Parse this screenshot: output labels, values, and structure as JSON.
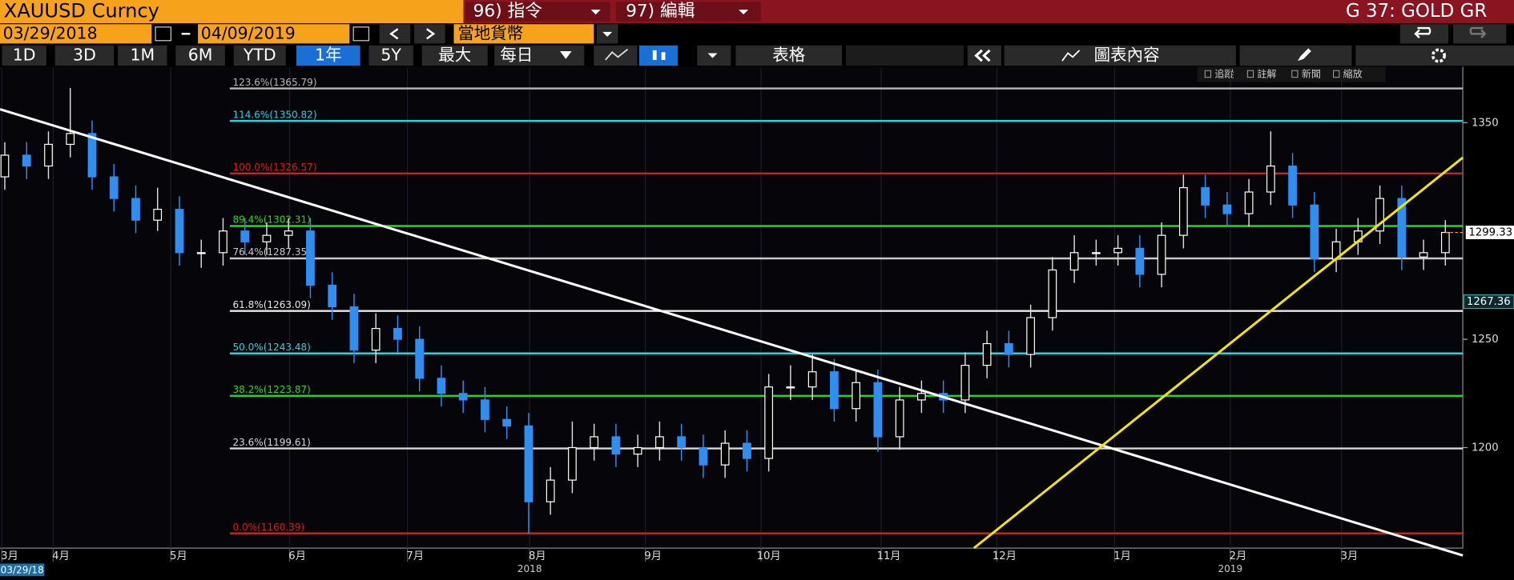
{
  "toolbar": {
    "ticker": "XAUUSD Curncy",
    "menu1": "96) 指令",
    "menu2": "97) 編輯",
    "security": "G 37: GOLD GR",
    "start_date": "03/29/2018",
    "end_date": "04/09/2019",
    "currency": "當地貨幣",
    "periods": [
      "1D",
      "3D",
      "1M",
      "6M",
      "YTD",
      "1年",
      "5Y",
      "最大"
    ],
    "frequency": "每日",
    "table": "表格",
    "chart_content": "圖表內容",
    "tools": [
      "追蹤",
      "註解",
      "新聞",
      "縮放"
    ],
    "axis_start": "03/29/18"
  },
  "chart_data": {
    "type": "candlestick",
    "up_color": "#ffffff",
    "down_color": "#2e8ff0",
    "grid": false,
    "xlim": [
      -0.22,
      66.8
    ],
    "ylim": [
      1153.6,
      1375.4
    ],
    "yticks": [
      1200,
      1250,
      1350
    ],
    "xticks": [
      {
        "value": 0.22,
        "label": "3月"
      },
      {
        "value": 2.57,
        "label": "4月"
      },
      {
        "value": 7.96,
        "label": "5月"
      },
      {
        "value": 13.4,
        "label": "6月"
      },
      {
        "value": 18.8,
        "label": "7月"
      },
      {
        "value": 24.4,
        "label": "8月"
      },
      {
        "value": 29.7,
        "label": "9月"
      },
      {
        "value": 35.0,
        "label": "10月"
      },
      {
        "value": 40.5,
        "label": "11月"
      },
      {
        "value": 45.8,
        "label": "12月"
      },
      {
        "value": 51.2,
        "label": "1月"
      },
      {
        "value": 56.5,
        "label": "2月"
      },
      {
        "value": 61.6,
        "label": "3月"
      }
    ],
    "years": [
      "2018",
      "2019"
    ],
    "open": [
      1325,
      1335,
      1330,
      1340,
      1345,
      1325,
      1315,
      1305,
      1310,
      1290,
      1290,
      1300,
      1295,
      1298,
      1300,
      1275,
      1265,
      1245,
      1255,
      1250,
      1232,
      1225,
      1222,
      1213,
      1210,
      1175,
      1185,
      1200,
      1205,
      1197,
      1200,
      1205,
      1200,
      1192,
      1202,
      1195,
      1228,
      1228,
      1235,
      1218,
      1230,
      1205,
      1222,
      1225,
      1222,
      1238,
      1248,
      1243,
      1260,
      1282,
      1290,
      1290,
      1292,
      1280,
      1298,
      1320,
      1312,
      1308,
      1318,
      1330,
      1312,
      1287,
      1295,
      1300,
      1315,
      1288,
      1290
    ],
    "high": [
      1341,
      1341,
      1346,
      1366,
      1351,
      1331,
      1321,
      1320,
      1316,
      1296,
      1306,
      1306,
      1304,
      1306,
      1306,
      1281,
      1271,
      1262,
      1261,
      1256,
      1238,
      1231,
      1228,
      1219,
      1216,
      1191,
      1212,
      1211,
      1211,
      1206,
      1212,
      1211,
      1206,
      1208,
      1208,
      1234,
      1238,
      1243,
      1241,
      1236,
      1236,
      1228,
      1231,
      1231,
      1244,
      1254,
      1254,
      1266,
      1288,
      1298,
      1296,
      1298,
      1298,
      1304,
      1326,
      1326,
      1318,
      1324,
      1346,
      1336,
      1318,
      1301,
      1306,
      1321,
      1321,
      1296,
      1305
    ],
    "low": [
      1319,
      1324,
      1324,
      1334,
      1319,
      1309,
      1299,
      1300,
      1284,
      1283,
      1284,
      1289,
      1289,
      1292,
      1269,
      1259,
      1239,
      1239,
      1244,
      1226,
      1219,
      1216,
      1207,
      1204,
      1160.39,
      1169,
      1179,
      1194,
      1191,
      1191,
      1194,
      1194,
      1186,
      1186,
      1189,
      1189,
      1222,
      1222,
      1212,
      1212,
      1198,
      1199,
      1216,
      1216,
      1216,
      1232,
      1237,
      1237,
      1254,
      1276,
      1284,
      1284,
      1274,
      1274,
      1292,
      1306,
      1302,
      1302,
      1312,
      1306,
      1281,
      1281,
      1289,
      1294,
      1282,
      1282,
      1284
    ],
    "close": [
      1335,
      1330,
      1340,
      1345,
      1325,
      1315,
      1305,
      1310,
      1290,
      1290,
      1300,
      1295,
      1298,
      1300,
      1275,
      1265,
      1245,
      1255,
      1250,
      1232,
      1225,
      1222,
      1213,
      1210,
      1175,
      1185,
      1200,
      1205,
      1197,
      1200,
      1205,
      1200,
      1192,
      1202,
      1195,
      1228,
      1228,
      1235,
      1218,
      1230,
      1205,
      1222,
      1225,
      1222,
      1238,
      1248,
      1243,
      1260,
      1282,
      1290,
      1290,
      1292,
      1280,
      1298,
      1320,
      1312,
      1308,
      1318,
      1330,
      1312,
      1287,
      1295,
      1300,
      1315,
      1288,
      1290,
      1299.33
    ],
    "marker_value": 1267.36,
    "fib_levels": [
      {
        "value": 1365.79,
        "label": "123.6%(1365.79)",
        "color": "#b8b8b8"
      },
      {
        "value": 1350.82,
        "label": "114.6%(1350.82)",
        "color": "#27d3dc"
      },
      {
        "value": 1326.57,
        "label": "100.0%(1326.57)",
        "color": "#e01818"
      },
      {
        "value": 1302.31,
        "label": "89.4%(1302.31)",
        "color": "#22d822"
      },
      {
        "value": 1287.35,
        "label": "76.4%(1287.35)",
        "color": "#c8c8c8"
      },
      {
        "value": 1263.09,
        "label": "61.8%(1263.09)",
        "color": "#e8e8e8"
      },
      {
        "value": 1243.48,
        "label": "50.0%(1243.48)",
        "color": "#27d3dc"
      },
      {
        "value": 1223.87,
        "label": "38.2%(1223.87)",
        "color": "#22d822"
      },
      {
        "value": 1199.61,
        "label": "23.6%(1199.61)",
        "color": "#d8d8d8"
      },
      {
        "value": 1160.39,
        "label": "0.0%(1160.39)",
        "color": "#e01818"
      }
    ],
    "trendlines": [
      {
        "color": "#ffffff",
        "x": [
          -0.22,
          66.8
        ],
        "y": [
          1356.2,
          1150.2
        ]
      },
      {
        "color": "#f2e600",
        "x": [
          44.4,
          66.8
        ],
        "y": [
          1153.6,
          1333.9
        ]
      }
    ]
  }
}
